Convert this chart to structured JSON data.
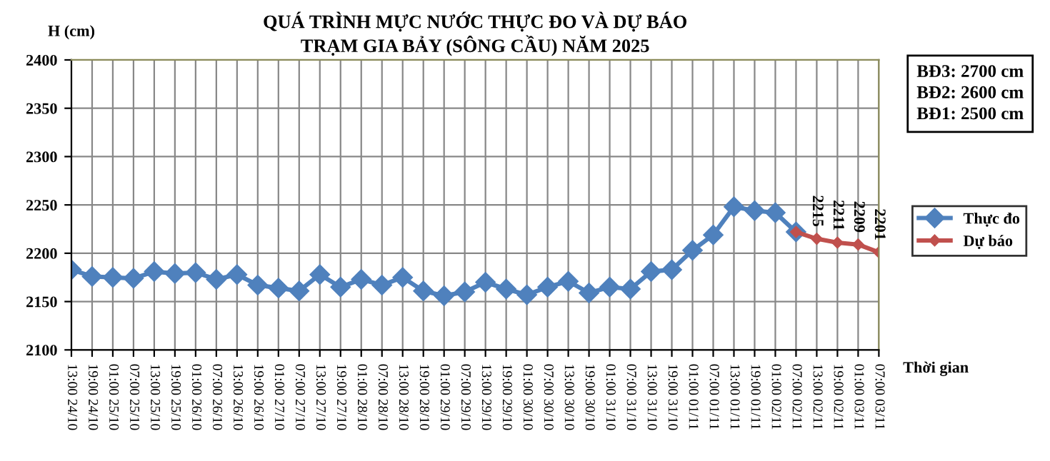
{
  "chart_data": {
    "type": "line",
    "title": "QUÁ TRÌNH MỰC NƯỚC THỰC ĐO VÀ DỰ BÁO\nTRẠM GIA BẢY (SÔNG CẦU) NĂM 2025",
    "ylabel": "H (cm)",
    "xlabel": "Thời gian",
    "categories": [
      "13:00 24/10",
      "19:00 24/10",
      "01:00 25/10",
      "07:00 25/10",
      "13:00 25/10",
      "19:00 25/10",
      "01:00 26/10",
      "07:00 26/10",
      "13:00 26/10",
      "19:00 26/10",
      "01:00 27/10",
      "07:00 27/10",
      "13:00 27/10",
      "19:00 27/10",
      "01:00 28/10",
      "07:00 28/10",
      "13:00 28/10",
      "19:00 28/10",
      "01:00 29/10",
      "07:00 29/10",
      "13:00 29/10",
      "19:00 29/10",
      "01:00 30/10",
      "07:00 30/10",
      "13:00 30/10",
      "19:00 30/10",
      "01:00 31/10",
      "07:00 31/10",
      "13:00 31/10",
      "19:00 31/10",
      "01:00 01/11",
      "07:00 01/11",
      "13:00 01/11",
      "19:00 01/11",
      "01:00 02/11",
      "07:00 02/11",
      "13:00 02/11",
      "19:00 02/11",
      "01:00 03/11",
      "07:00 03/11"
    ],
    "series": [
      {
        "name": "Thực đo",
        "color": "#4f81bd",
        "values": [
          2183,
          2176,
          2175,
          2174,
          2181,
          2179,
          2180,
          2173,
          2178,
          2167,
          2164,
          2161,
          2178,
          2165,
          2173,
          2167,
          2175,
          2161,
          2156,
          2160,
          2170,
          2163,
          2157,
          2165,
          2171,
          2159,
          2165,
          2163,
          2181,
          2183,
          2203,
          2219,
          2248,
          2244,
          2242,
          2222,
          null,
          null,
          null,
          null
        ]
      },
      {
        "name": "Dự báo",
        "color": "#c0504d",
        "values": [
          null,
          null,
          null,
          null,
          null,
          null,
          null,
          null,
          null,
          null,
          null,
          null,
          null,
          null,
          null,
          null,
          null,
          null,
          null,
          null,
          null,
          null,
          null,
          null,
          null,
          null,
          null,
          null,
          null,
          null,
          null,
          null,
          null,
          null,
          null,
          2222,
          2215,
          2211,
          2209,
          2201
        ],
        "value_labels": [
          null,
          null,
          null,
          null,
          null,
          null,
          null,
          null,
          null,
          null,
          null,
          null,
          null,
          null,
          null,
          null,
          null,
          null,
          null,
          null,
          null,
          null,
          null,
          null,
          null,
          null,
          null,
          null,
          null,
          null,
          null,
          null,
          null,
          null,
          null,
          null,
          "2215",
          "2211",
          "2209",
          "2201"
        ]
      }
    ],
    "ylim": [
      2100,
      2400
    ],
    "yticks": [
      2100,
      2150,
      2200,
      2250,
      2300,
      2350,
      2400
    ],
    "grid": true,
    "legend": "right",
    "marker": "diamond",
    "line_style": "solid",
    "annotations": [
      "BĐ3: 2700 cm\nBĐ2: 2600 cm\nBĐ1: 2500 cm"
    ]
  }
}
